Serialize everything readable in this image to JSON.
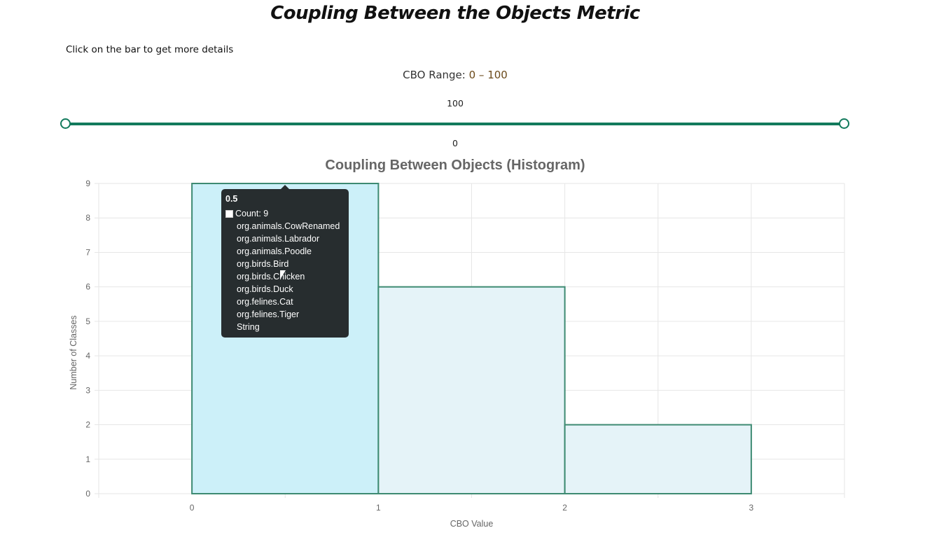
{
  "page": {
    "title": "Coupling Between the Objects Metric",
    "hint": "Click on the bar to get more details"
  },
  "range": {
    "label": "CBO Range:",
    "value": "0 – 100",
    "max_label": "100",
    "min_label": "0",
    "min": 0,
    "max": 100,
    "accent_color": "#127a5c"
  },
  "tooltip": {
    "title": "0.5",
    "count_label": "Count: 9",
    "items": [
      "org.animals.CowRenamed",
      "org.animals.Labrador",
      "org.animals.Poodle",
      "org.birds.Bird",
      "org.birds.Chicken",
      "org.birds.Duck",
      "org.felines.Cat",
      "org.felines.Tiger",
      "String"
    ]
  },
  "chart_data": {
    "type": "bar",
    "title": "Coupling Between Objects (Histogram)",
    "xlabel": "CBO Value",
    "ylabel": "Number of Classes",
    "x_ticks": [
      "0",
      "1",
      "2",
      "3"
    ],
    "y_ticks": [
      "0",
      "1",
      "2",
      "3",
      "4",
      "5",
      "6",
      "7",
      "8",
      "9"
    ],
    "ylim": [
      0,
      9
    ],
    "xlim": [
      -0.5,
      3.5
    ],
    "grid": true,
    "bins": [
      {
        "start": 0,
        "end": 1,
        "value": 9,
        "highlighted": true
      },
      {
        "start": 1,
        "end": 2,
        "value": 6,
        "highlighted": false
      },
      {
        "start": 2,
        "end": 3,
        "value": 2,
        "highlighted": false
      }
    ],
    "colors": {
      "bar_fill": "#e5f3f8",
      "bar_fill_hover": "#ccf0f9",
      "bar_border": "#3d8a72",
      "grid": "#e6e6e6",
      "axis_text": "#666666"
    }
  }
}
